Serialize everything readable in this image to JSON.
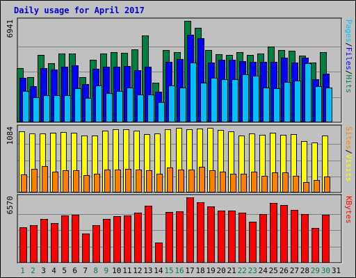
{
  "chart_data": {
    "type": "bar",
    "title": "Daily usage for April 2017",
    "colors": {
      "background": "#c0c0c0",
      "pages": "#00c0ff",
      "files": "#0000ff",
      "hits": "#008040",
      "visits": "#ffff00",
      "sites": "#ff8000",
      "kbytes": "#ff0000",
      "title": "#0000cc",
      "weekend_label": "#008040",
      "weekday_label": "#000000"
    },
    "categories": [
      "1",
      "2",
      "3",
      "4",
      "5",
      "6",
      "7",
      "8",
      "9",
      "10",
      "11",
      "12",
      "13",
      "14",
      "15",
      "16",
      "17",
      "18",
      "19",
      "20",
      "21",
      "22",
      "23",
      "24",
      "25",
      "26",
      "27",
      "28",
      "29",
      "30",
      "31"
    ],
    "weekend_days": [
      1,
      2,
      8,
      9,
      15,
      16,
      22,
      23,
      29,
      30
    ],
    "panels": [
      {
        "name": "hits",
        "ymax": 6941,
        "ymax_label": "6941",
        "right_label": [
          "Pages",
          "/",
          "Files",
          "/",
          "Hits"
        ],
        "right_label_colors": [
          "#00c0ff",
          "#000000",
          "#0000ff",
          "#000000",
          "#008040"
        ],
        "series": [
          {
            "name": "Hits",
            "values": [
              3700,
              3100,
              4600,
              4050,
              4700,
              4700,
              3100,
              4300,
              4700,
              4800,
              4750,
              5000,
              5950,
              2700,
              4950,
              4800,
              6941,
              6450,
              4950,
              4650,
              4600,
              4800,
              4600,
              4700,
              5200,
              4950,
              4900,
              4550,
              4100,
              4800
            ]
          },
          {
            "name": "Files",
            "values": [
              3050,
              2450,
              3700,
              3600,
              3800,
              3900,
              2600,
              3650,
              3800,
              3800,
              3850,
              3550,
              3800,
              2100,
              4150,
              4350,
              6000,
              5750,
              4100,
              4300,
              4300,
              4200,
              4150,
              4150,
              4150,
              4400,
              4100,
              4400,
              2950,
              3350
            ]
          },
          {
            "name": "Pages",
            "values": [
              2150,
              1700,
              1850,
              1850,
              1850,
              2350,
              1650,
              2500,
              2000,
              2150,
              2400,
              1900,
              1900,
              1400,
              2500,
              2400,
              4100,
              2700,
              3050,
              2950,
              2950,
              3300,
              3200,
              2400,
              2350,
              2750,
              2850,
              4050,
              2450,
              2400
            ]
          }
        ]
      },
      {
        "name": "visits",
        "ymax": 1084,
        "ymax_label": "1084",
        "right_label": [
          "Sites",
          "/",
          "Visits"
        ],
        "right_label_colors": [
          "#ff8000",
          "#000000",
          "#ffff00"
        ],
        "series": [
          {
            "name": "Visits",
            "values": [
              1020,
              990,
              990,
              1000,
              1010,
              1000,
              960,
              950,
              1040,
              1060,
              1060,
              1040,
              980,
              990,
              1060,
              1080,
              1060,
              1070,
              1084,
              1050,
              1030,
              960,
              990,
              970,
              1000,
              970,
              980,
              860,
              840,
              950
            ]
          },
          {
            "name": "Sites",
            "values": [
              300,
              400,
              440,
              350,
              370,
              370,
              290,
              310,
              380,
              380,
              400,
              380,
              370,
              310,
              420,
              390,
              390,
              430,
              370,
              350,
              320,
              320,
              350,
              280,
              340,
              340,
              280,
              180,
              210,
              270
            ]
          }
        ]
      },
      {
        "name": "kbytes",
        "ymax": 6570,
        "ymax_label": "6570",
        "right_label": [
          "KBytes"
        ],
        "right_label_colors": [
          "#ff0000"
        ],
        "series": [
          {
            "name": "KBytes",
            "values": [
              3550,
              3800,
              4400,
              3950,
              4750,
              4800,
              2950,
              3750,
              4400,
              4700,
              4750,
              5000,
              5750,
              2050,
              5100,
              5200,
              6570,
              6050,
              5650,
              5250,
              5250,
              5050,
              4100,
              4900,
              5980,
              5800,
              5300,
              4900,
              3500,
              4850
            ]
          }
        ]
      }
    ]
  }
}
